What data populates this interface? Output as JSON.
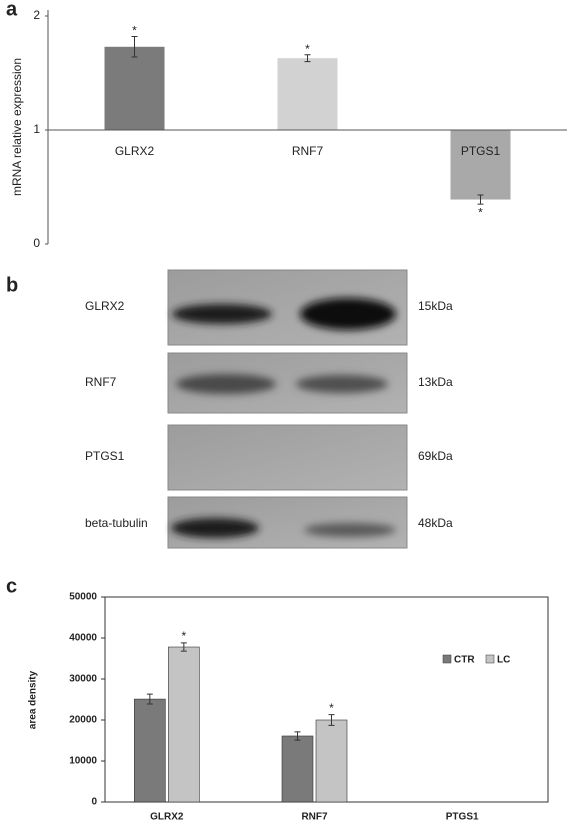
{
  "chart_data": [
    {
      "type": "bar",
      "panel_label": "a",
      "y_label": "mRNA relative expression",
      "categories": [
        "GLRX2",
        "RNF7",
        "PTGS1"
      ],
      "values": [
        1.73,
        1.63,
        0.39
      ],
      "errors": [
        0.09,
        0.03,
        0.04
      ],
      "colors": [
        "#7b7b7b",
        "#d2d2d2",
        "#a9a9a9"
      ],
      "annotations": [
        "*",
        "*",
        "*"
      ],
      "bar_base": 1,
      "ylim": [
        0,
        2
      ],
      "yticks": [
        0,
        1,
        2
      ]
    },
    {
      "type": "grouped_bar",
      "panel_label": "c",
      "y_label": "area density",
      "categories": [
        "GLRX2",
        "RNF7",
        "PTGS1"
      ],
      "series": [
        {
          "name": "CTR",
          "color": "#7a7a7a",
          "values": [
            25100,
            16100,
            0
          ],
          "errors": [
            1200,
            1000,
            0
          ],
          "annotations": [
            null,
            null,
            null
          ]
        },
        {
          "name": "LC",
          "color": "#c4c4c4",
          "values": [
            37800,
            20000,
            0
          ],
          "errors": [
            1000,
            1300,
            0
          ],
          "annotations": [
            "*",
            "*",
            null
          ]
        }
      ],
      "ylim": [
        0,
        50000
      ],
      "yticks": [
        0,
        10000,
        20000,
        30000,
        40000,
        50000
      ]
    }
  ],
  "blot": {
    "panel_label": "b",
    "rows": [
      {
        "name": "GLRX2",
        "size": "15kDa"
      },
      {
        "name": "RNF7",
        "size": "13kDa"
      },
      {
        "name": "PTGS1",
        "size": "69kDa"
      },
      {
        "name": "beta-tubulin",
        "size": "48kDa"
      }
    ]
  }
}
